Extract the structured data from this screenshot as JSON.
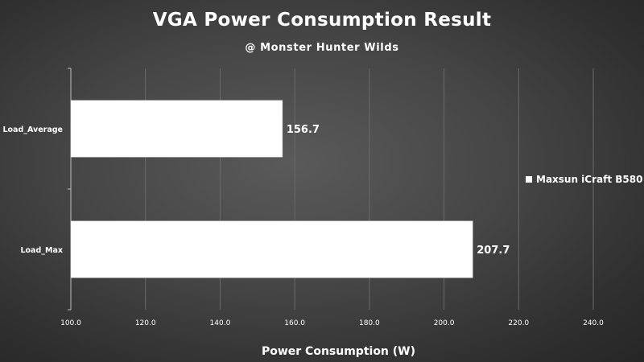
{
  "chart_data": {
    "type": "bar",
    "orientation": "horizontal",
    "title": "VGA Power Consumption Result",
    "subtitle": "@ Monster Hunter Wilds",
    "xlabel": "Power Consumption (W)",
    "ylabel": "",
    "xlim": [
      100,
      240
    ],
    "xticks": [
      100,
      120,
      140,
      160,
      180,
      200,
      220,
      240
    ],
    "xtick_labels": [
      "100.0",
      "120.0",
      "140.0",
      "160.0",
      "180.0",
      "200.0",
      "220.0",
      "240.0"
    ],
    "categories": [
      "Load_Average",
      "Load_Max"
    ],
    "series": [
      {
        "name": "Maxsun iCraft B580",
        "values": [
          156.7,
          207.7
        ],
        "value_labels": [
          "156.7",
          "207.7"
        ],
        "color": "#ffffff"
      }
    ],
    "grid": "vertical",
    "legend_position": "right"
  }
}
